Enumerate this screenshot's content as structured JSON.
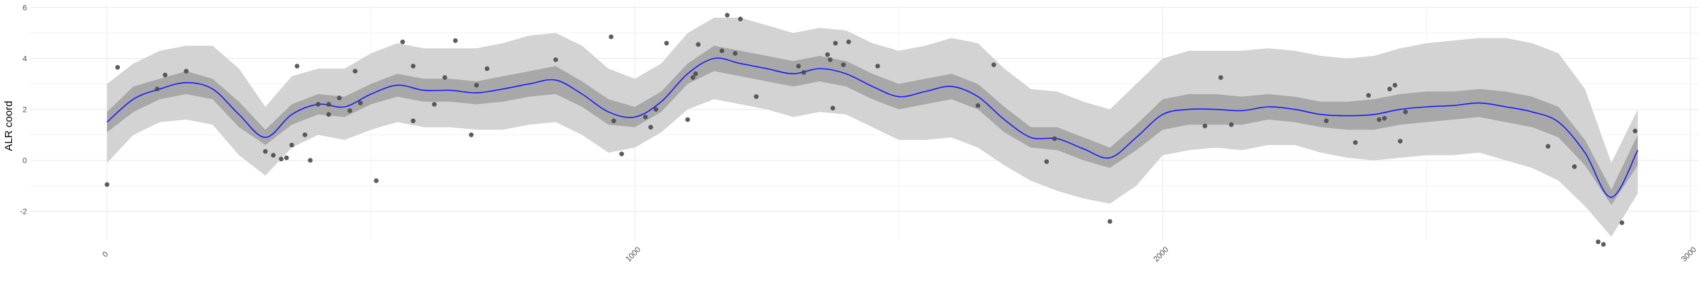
{
  "chart_data": {
    "type": "line",
    "title": "",
    "xlabel": "",
    "ylabel": "ALR coord",
    "xlim": [
      -145,
      3015
    ],
    "ylim": [
      -3.15,
      6.1
    ],
    "x_ticks": [
      0,
      1000,
      2000,
      3000
    ],
    "y_ticks": [
      -2,
      0,
      2,
      4,
      6
    ],
    "grid": true,
    "colors": {
      "line": "#1a1aff",
      "inner_band": "#a8a8a8",
      "outer_band": "#d3d3d3",
      "points": "#4a4a4a",
      "grid": "#ebebeb"
    },
    "series": [
      {
        "kind": "smooth-fit",
        "x": [
          0,
          50,
          100,
          150,
          200,
          250,
          300,
          350,
          400,
          450,
          500,
          550,
          600,
          650,
          700,
          750,
          800,
          850,
          900,
          950,
          1000,
          1050,
          1100,
          1150,
          1200,
          1250,
          1300,
          1350,
          1400,
          1450,
          1500,
          1550,
          1600,
          1650,
          1700,
          1750,
          1800,
          1850,
          1900,
          1950,
          2000,
          2050,
          2100,
          2150,
          2200,
          2250,
          2300,
          2350,
          2400,
          2450,
          2500,
          2550,
          2600,
          2650,
          2700,
          2750,
          2800,
          2850,
          2900
        ],
        "y": [
          1.5,
          2.4,
          2.8,
          3.05,
          2.8,
          1.8,
          0.9,
          1.8,
          2.2,
          2.1,
          2.6,
          2.95,
          2.75,
          2.75,
          2.65,
          2.8,
          3.0,
          3.15,
          2.6,
          1.9,
          1.7,
          2.3,
          3.4,
          4.0,
          3.8,
          3.6,
          3.4,
          3.6,
          3.4,
          2.9,
          2.5,
          2.7,
          2.9,
          2.5,
          1.6,
          0.9,
          0.85,
          0.45,
          0.1,
          0.9,
          1.8,
          2.0,
          2.0,
          1.95,
          2.1,
          2.0,
          1.8,
          1.75,
          1.8,
          2.0,
          2.1,
          2.15,
          2.25,
          2.1,
          1.9,
          1.5,
          0.3,
          -1.45,
          0.4
        ],
        "inner_lower": [
          1.1,
          1.9,
          2.4,
          2.6,
          2.4,
          1.3,
          0.6,
          1.4,
          1.8,
          1.7,
          2.2,
          2.5,
          2.3,
          2.3,
          2.2,
          2.3,
          2.5,
          2.6,
          2.1,
          1.4,
          1.3,
          1.9,
          3.0,
          3.5,
          3.3,
          3.1,
          2.9,
          3.1,
          2.9,
          2.4,
          2.0,
          2.2,
          2.4,
          2.0,
          1.1,
          0.5,
          0.4,
          0.0,
          -0.3,
          0.4,
          1.2,
          1.4,
          1.4,
          1.4,
          1.6,
          1.5,
          1.3,
          1.2,
          1.2,
          1.4,
          1.5,
          1.6,
          1.7,
          1.5,
          1.3,
          0.9,
          -0.2,
          -1.75,
          -0.2
        ],
        "inner_upper": [
          1.9,
          2.9,
          3.2,
          3.5,
          3.2,
          2.3,
          1.2,
          2.2,
          2.6,
          2.5,
          3.0,
          3.4,
          3.2,
          3.2,
          3.1,
          3.3,
          3.5,
          3.7,
          3.1,
          2.4,
          2.1,
          2.7,
          3.8,
          4.5,
          4.3,
          4.1,
          3.9,
          4.1,
          3.9,
          3.4,
          3.0,
          3.2,
          3.4,
          3.0,
          2.1,
          1.3,
          1.3,
          0.9,
          0.5,
          1.4,
          2.4,
          2.6,
          2.6,
          2.5,
          2.6,
          2.5,
          2.3,
          2.3,
          2.4,
          2.6,
          2.7,
          2.7,
          2.8,
          2.7,
          2.5,
          2.1,
          0.8,
          -1.15,
          1.0
        ],
        "outer_lower": [
          -0.1,
          1.0,
          1.5,
          1.6,
          1.4,
          0.2,
          -0.6,
          0.5,
          1.0,
          0.8,
          1.2,
          1.5,
          1.3,
          1.3,
          1.2,
          1.2,
          1.4,
          1.5,
          1.0,
          0.3,
          0.5,
          1.1,
          2.0,
          2.4,
          2.2,
          2.0,
          1.7,
          1.9,
          1.8,
          1.3,
          0.8,
          0.8,
          0.9,
          0.5,
          -0.2,
          -0.8,
          -1.2,
          -1.5,
          -1.7,
          -1.0,
          0.2,
          0.4,
          0.5,
          0.4,
          0.6,
          0.6,
          0.3,
          0.1,
          0.0,
          0.1,
          0.2,
          0.2,
          0.3,
          0.0,
          -0.3,
          -0.8,
          -1.8,
          -3.0,
          -1.3
        ],
        "outer_upper": [
          3.0,
          3.8,
          4.3,
          4.5,
          4.5,
          3.6,
          2.1,
          3.3,
          3.6,
          3.6,
          4.2,
          4.6,
          4.4,
          4.4,
          4.4,
          4.6,
          4.9,
          5.0,
          4.5,
          3.6,
          3.2,
          3.8,
          5.0,
          5.6,
          5.6,
          5.3,
          5.0,
          5.2,
          5.1,
          4.6,
          4.3,
          4.5,
          4.8,
          4.6,
          3.6,
          2.8,
          2.7,
          2.3,
          2.0,
          3.0,
          4.0,
          4.3,
          4.3,
          4.3,
          4.4,
          4.3,
          4.1,
          4.0,
          4.1,
          4.4,
          4.6,
          4.7,
          4.8,
          4.8,
          4.6,
          4.2,
          2.8,
          -0.1,
          2.0
        ]
      },
      {
        "kind": "points",
        "x": [
          0,
          20,
          95,
          110,
          150,
          300,
          315,
          330,
          340,
          350,
          360,
          375,
          385,
          400,
          420,
          420,
          440,
          460,
          470,
          480,
          510,
          560,
          580,
          580,
          620,
          640,
          660,
          690,
          700,
          720,
          850,
          955,
          960,
          975,
          1020,
          1030,
          1040,
          1060,
          1100,
          1110,
          1115,
          1120,
          1165,
          1175,
          1190,
          1200,
          1230,
          1310,
          1320,
          1365,
          1370,
          1375,
          1380,
          1395,
          1405,
          1460,
          1650,
          1680,
          1780,
          1795,
          1900,
          2080,
          2110,
          2130,
          2310,
          2365,
          2390,
          2410,
          2420,
          2430,
          2440,
          2450,
          2460,
          2730,
          2780,
          2825,
          2835,
          2870,
          2895
        ],
        "y": [
          -0.95,
          3.65,
          2.8,
          3.35,
          3.5,
          0.35,
          0.2,
          0.05,
          0.1,
          0.6,
          3.7,
          1.0,
          0.0,
          2.2,
          1.8,
          2.2,
          2.45,
          1.95,
          3.5,
          2.25,
          -0.8,
          4.65,
          3.7,
          1.55,
          2.2,
          3.25,
          4.7,
          1.0,
          2.95,
          3.6,
          3.95,
          4.85,
          1.55,
          0.25,
          1.7,
          1.3,
          2.0,
          4.6,
          1.6,
          3.25,
          3.4,
          4.55,
          4.3,
          5.7,
          4.2,
          5.55,
          2.5,
          3.7,
          3.45,
          4.15,
          3.95,
          2.05,
          4.6,
          3.75,
          4.65,
          3.7,
          2.15,
          3.75,
          -0.05,
          0.85,
          -2.4,
          1.35,
          3.25,
          1.4,
          1.55,
          0.7,
          2.55,
          1.6,
          1.65,
          2.8,
          2.95,
          0.75,
          1.9,
          0.55,
          -0.25,
          -3.2,
          -3.3,
          -2.45,
          1.15
        ]
      }
    ]
  }
}
